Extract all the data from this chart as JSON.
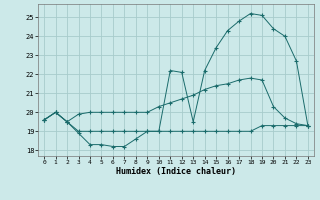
{
  "xlabel": "Humidex (Indice chaleur)",
  "bg_color": "#cce9e9",
  "grid_color": "#a8cccc",
  "line_color": "#1a6b6b",
  "ylim": [
    17.7,
    25.7
  ],
  "xlim": [
    -0.5,
    23.5
  ],
  "yticks": [
    18,
    19,
    20,
    21,
    22,
    23,
    24,
    25
  ],
  "xticks": [
    0,
    1,
    2,
    3,
    4,
    5,
    6,
    7,
    8,
    9,
    10,
    11,
    12,
    13,
    14,
    15,
    16,
    17,
    18,
    19,
    20,
    21,
    22,
    23
  ],
  "line1_x": [
    0,
    1,
    2,
    3,
    4,
    5,
    6,
    7,
    8,
    9,
    10,
    11,
    12,
    13,
    14,
    15,
    16,
    17,
    18,
    19,
    20,
    21,
    22,
    23
  ],
  "line1_y": [
    19.6,
    20.0,
    19.5,
    18.9,
    18.3,
    18.3,
    18.2,
    18.2,
    18.6,
    19.0,
    19.0,
    22.2,
    22.1,
    19.5,
    22.2,
    23.4,
    24.3,
    24.8,
    25.2,
    25.1,
    24.4,
    24.0,
    22.7,
    19.3
  ],
  "line2_x": [
    0,
    1,
    2,
    3,
    4,
    5,
    6,
    7,
    8,
    9,
    10,
    11,
    12,
    13,
    14,
    15,
    16,
    17,
    18,
    19,
    20,
    21,
    22,
    23
  ],
  "line2_y": [
    19.6,
    20.0,
    19.5,
    19.0,
    19.0,
    19.0,
    19.0,
    19.0,
    19.0,
    19.0,
    19.0,
    19.0,
    19.0,
    19.0,
    19.0,
    19.0,
    19.0,
    19.0,
    19.0,
    19.3,
    19.3,
    19.3,
    19.3,
    19.3
  ],
  "line3_x": [
    0,
    1,
    2,
    3,
    4,
    5,
    6,
    7,
    8,
    9,
    10,
    11,
    12,
    13,
    14,
    15,
    16,
    17,
    18,
    19,
    20,
    21,
    22,
    23
  ],
  "line3_y": [
    19.6,
    20.0,
    19.5,
    19.9,
    20.0,
    20.0,
    20.0,
    20.0,
    20.0,
    20.0,
    20.3,
    20.5,
    20.7,
    20.9,
    21.2,
    21.4,
    21.5,
    21.7,
    21.8,
    21.7,
    20.3,
    19.7,
    19.4,
    19.3
  ]
}
